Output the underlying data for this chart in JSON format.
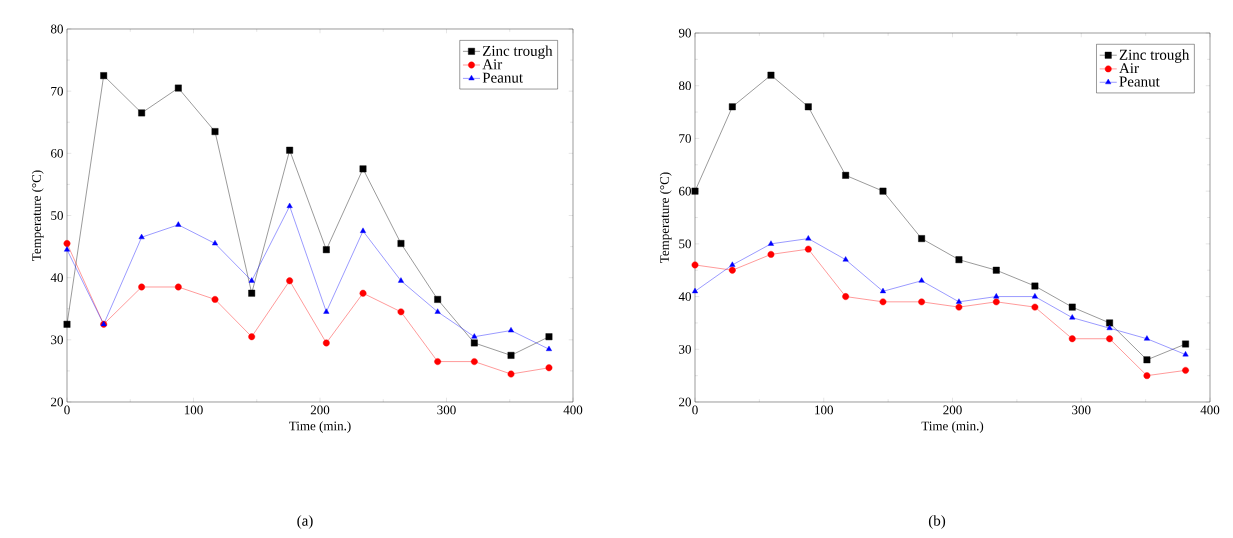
{
  "chart_data": [
    {
      "type": "line",
      "xlabel": "Time (min.)",
      "ylabel": "Temperature (°C)",
      "annotations": [
        "(a)"
      ],
      "x": [
        0,
        29,
        59,
        88,
        117,
        146,
        176,
        205,
        234,
        264,
        293,
        322,
        351,
        381
      ],
      "xlim": [
        0,
        400
      ],
      "xticks": [
        0,
        100,
        200,
        300,
        400
      ],
      "ylim": [
        20,
        80
      ],
      "yticks": [
        20,
        30,
        40,
        50,
        60,
        70,
        80
      ],
      "grid": false,
      "legend": "top right",
      "line_style": "solid",
      "series": [
        {
          "name": "Zinc trough",
          "color": "#000000",
          "marker": "square",
          "values": [
            32.5,
            72.5,
            66.5,
            70.5,
            63.5,
            37.5,
            60.5,
            44.5,
            57.5,
            45.5,
            36.5,
            29.5,
            27.5,
            30.5
          ]
        },
        {
          "name": "Air",
          "color": "#ff0000",
          "marker": "circle",
          "values": [
            45.5,
            32.5,
            38.5,
            38.5,
            36.5,
            30.5,
            39.5,
            29.5,
            37.5,
            34.5,
            26.5,
            26.5,
            24.5,
            25.5
          ]
        },
        {
          "name": "Peanut",
          "color": "#0000ff",
          "marker": "triangle",
          "values": [
            44.5,
            32.5,
            46.5,
            48.5,
            45.5,
            39.5,
            51.5,
            34.5,
            47.5,
            39.5,
            34.5,
            30.5,
            31.5,
            28.5
          ]
        }
      ]
    },
    {
      "type": "line",
      "xlabel": "Time (min.)",
      "ylabel": "Temperature (°C)",
      "annotations": [
        "(b)"
      ],
      "x": [
        0,
        29,
        59,
        88,
        117,
        146,
        176,
        205,
        234,
        264,
        293,
        322,
        351,
        381
      ],
      "xlim": [
        0,
        400
      ],
      "xticks": [
        0,
        100,
        200,
        300,
        400
      ],
      "ylim": [
        20,
        90
      ],
      "yticks": [
        20,
        30,
        40,
        50,
        60,
        70,
        80,
        90
      ],
      "grid": false,
      "legend": "top right",
      "line_style": "solid",
      "series": [
        {
          "name": "Zinc trough",
          "color": "#000000",
          "marker": "square",
          "values": [
            60,
            76,
            82,
            76,
            63,
            60,
            51,
            47,
            45,
            42,
            38,
            35,
            28,
            31
          ]
        },
        {
          "name": "Air",
          "color": "#ff0000",
          "marker": "circle",
          "values": [
            46,
            45,
            48,
            49,
            40,
            39,
            39,
            38,
            39,
            38,
            32,
            32,
            25,
            26
          ]
        },
        {
          "name": "Peanut",
          "color": "#0000ff",
          "marker": "triangle",
          "values": [
            41,
            46,
            50,
            51,
            47,
            41,
            43,
            39,
            40,
            40,
            36,
            34,
            32,
            29
          ]
        }
      ]
    }
  ]
}
